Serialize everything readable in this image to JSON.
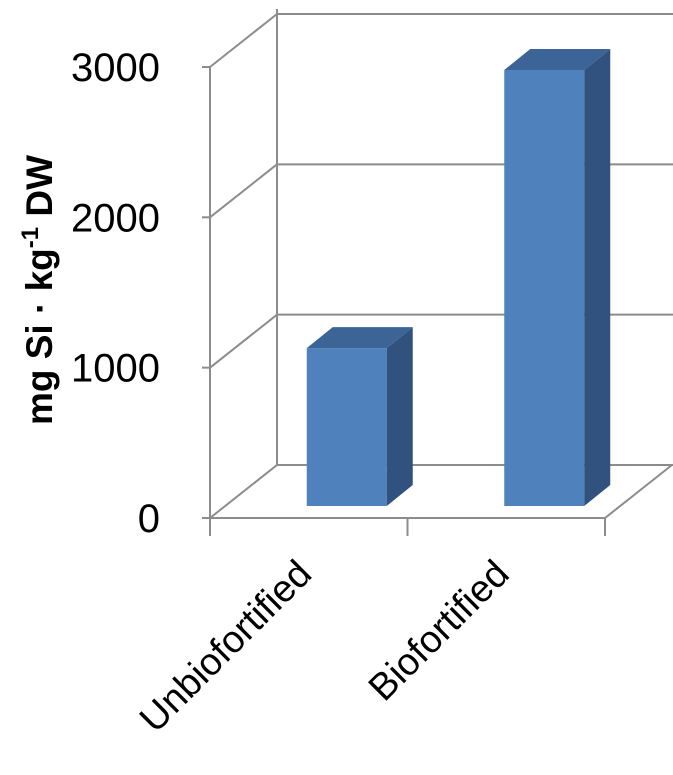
{
  "chart_data": {
    "type": "bar",
    "style": "3d-column",
    "categories": [
      "Unbiofortified",
      "Biofortified"
    ],
    "series": [
      {
        "values": [
          1150,
          3000
        ]
      }
    ],
    "ylabel": {
      "main": "mg Si · kg",
      "superscript": "-1",
      "suffix": " DW"
    },
    "xlabel": "",
    "title": "",
    "ylim": [
      0,
      3000
    ],
    "yticks": [
      "0",
      "1000",
      "2000",
      "3000"
    ],
    "grid": true,
    "legend": "none",
    "colors": {
      "bar_front": "#4F81BD",
      "bar_side": "#31527E",
      "bar_top": "#3C6497",
      "grid": "#8C8C8C"
    }
  }
}
